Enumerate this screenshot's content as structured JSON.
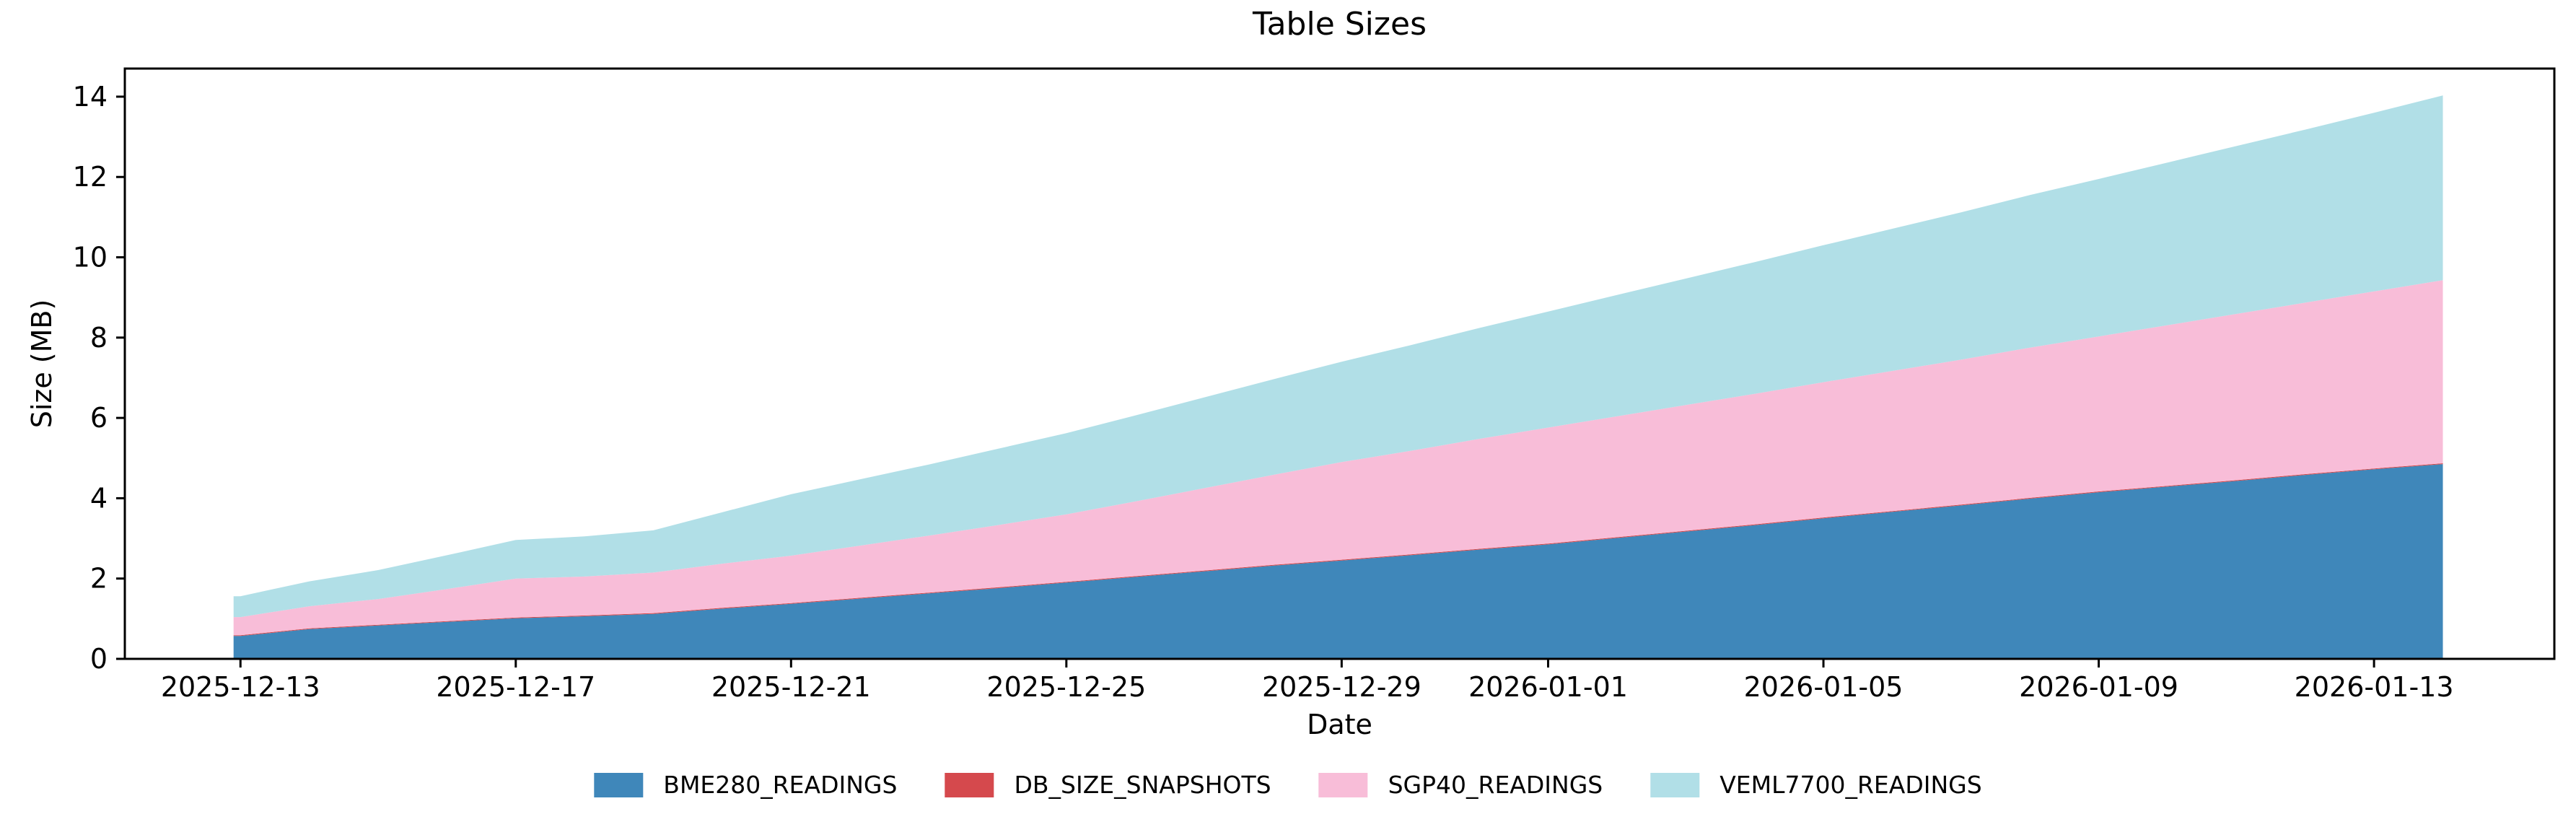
{
  "title": "Table Sizes",
  "x_axis": {
    "label": "Date"
  },
  "y_axis": {
    "label": "Size (MB)"
  },
  "legend": {
    "items": [
      {
        "label": "BME280_READINGS",
        "color": "#3f87ba"
      },
      {
        "label": "DB_SIZE_SNAPSHOTS",
        "color": "#d5494d"
      },
      {
        "label": "SGP40_READINGS",
        "color": "#f8bdd8"
      },
      {
        "label": "VEML7700_READINGS",
        "color": "#b1dfe7"
      }
    ]
  },
  "chart_data": {
    "type": "area",
    "stacked": true,
    "title": "Table Sizes",
    "xlabel": "Date",
    "ylabel": "Size (MB)",
    "grid": false,
    "legend_position": "bottom",
    "ylim": [
      0,
      14.7
    ],
    "xlim_days": [
      -1.68,
      33.62
    ],
    "x_start_day": -0.1,
    "x_dates": [
      "2025-12-13",
      "2025-12-14",
      "2025-12-15",
      "2025-12-16",
      "2025-12-17",
      "2025-12-18",
      "2025-12-19",
      "2025-12-20",
      "2025-12-21",
      "2025-12-22",
      "2025-12-23",
      "2025-12-24",
      "2025-12-25",
      "2025-12-26",
      "2025-12-27",
      "2025-12-28",
      "2025-12-29",
      "2025-12-30",
      "2025-12-31",
      "2026-01-01",
      "2026-01-02",
      "2026-01-03",
      "2026-01-04",
      "2026-01-05",
      "2026-01-06",
      "2026-01-07",
      "2026-01-08",
      "2026-01-09",
      "2026-01-10",
      "2026-01-11",
      "2026-01-12",
      "2026-01-13",
      "2026-01-14"
    ],
    "xticks": [
      {
        "label": "2025-12-13",
        "day": 0
      },
      {
        "label": "2025-12-17",
        "day": 4
      },
      {
        "label": "2025-12-21",
        "day": 8
      },
      {
        "label": "2025-12-25",
        "day": 12
      },
      {
        "label": "2025-12-29",
        "day": 16
      },
      {
        "label": "2026-01-01",
        "day": 19
      },
      {
        "label": "2026-01-05",
        "day": 23
      },
      {
        "label": "2026-01-09",
        "day": 27
      },
      {
        "label": "2026-01-13",
        "day": 31
      }
    ],
    "yticks": [
      0,
      2,
      4,
      6,
      8,
      10,
      12,
      14
    ],
    "series": [
      {
        "name": "BME280_READINGS",
        "color": "#3f87ba",
        "values": [
          0.57,
          0.74,
          0.83,
          0.92,
          1.01,
          1.06,
          1.12,
          1.25,
          1.37,
          1.5,
          1.63,
          1.76,
          1.9,
          2.04,
          2.18,
          2.32,
          2.45,
          2.58,
          2.72,
          2.85,
          3.01,
          3.17,
          3.33,
          3.5,
          3.66,
          3.82,
          3.99,
          4.15,
          4.29,
          4.43,
          4.58,
          4.72,
          4.85
        ]
      },
      {
        "name": "DB_SIZE_SNAPSHOTS",
        "color": "#d5494d",
        "values": [
          0.02,
          0.02,
          0.02,
          0.02,
          0.02,
          0.02,
          0.02,
          0.02,
          0.02,
          0.02,
          0.02,
          0.02,
          0.02,
          0.02,
          0.02,
          0.02,
          0.02,
          0.02,
          0.02,
          0.02,
          0.02,
          0.02,
          0.02,
          0.02,
          0.02,
          0.02,
          0.02,
          0.02,
          0.02,
          0.02,
          0.02,
          0.02,
          0.02
        ]
      },
      {
        "name": "SGP40_READINGS",
        "color": "#f8bdd8",
        "values": [
          0.45,
          0.55,
          0.64,
          0.8,
          0.97,
          0.97,
          1.01,
          1.1,
          1.18,
          1.3,
          1.42,
          1.55,
          1.68,
          1.86,
          2.05,
          2.24,
          2.43,
          2.58,
          2.74,
          2.89,
          3.01,
          3.13,
          3.25,
          3.37,
          3.49,
          3.61,
          3.74,
          3.86,
          4.0,
          4.14,
          4.27,
          4.41,
          4.56
        ]
      },
      {
        "name": "VEML7700_READINGS",
        "color": "#b1dfe7",
        "values": [
          0.52,
          0.62,
          0.72,
          0.84,
          0.96,
          1.0,
          1.05,
          1.28,
          1.53,
          1.65,
          1.77,
          1.9,
          2.02,
          2.14,
          2.26,
          2.38,
          2.5,
          2.63,
          2.76,
          2.89,
          3.02,
          3.15,
          3.28,
          3.41,
          3.54,
          3.67,
          3.8,
          3.92,
          4.05,
          4.18,
          4.31,
          4.45,
          4.6
        ]
      }
    ]
  }
}
